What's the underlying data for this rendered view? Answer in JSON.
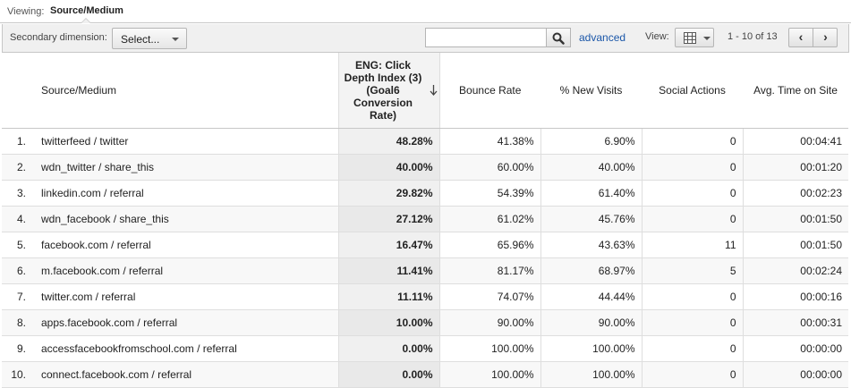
{
  "viewing": {
    "label": "Viewing:",
    "value": "Source/Medium"
  },
  "toolbar": {
    "secondary_label": "Secondary dimension:",
    "select_label": "Select...",
    "search_value": "",
    "advanced_label": "advanced",
    "view_label": "View:",
    "range_text": "1 - 10 of 13",
    "prev_symbol": "‹",
    "next_symbol": "›"
  },
  "table": {
    "headers": {
      "source": "Source/Medium",
      "eng": "ENG: Click Depth Index (3) (Goal6 Conversion Rate)",
      "bounce": "Bounce Rate",
      "new_visits": "% New Visits",
      "social": "Social Actions",
      "time": "Avg. Time on Site"
    },
    "rows": [
      {
        "idx": "1.",
        "source": "twitterfeed / twitter",
        "eng": "48.28%",
        "bounce": "41.38%",
        "new_visits": "6.90%",
        "social": "0",
        "time": "00:04:41"
      },
      {
        "idx": "2.",
        "source": "wdn_twitter / share_this",
        "eng": "40.00%",
        "bounce": "60.00%",
        "new_visits": "40.00%",
        "social": "0",
        "time": "00:01:20"
      },
      {
        "idx": "3.",
        "source": "linkedin.com / referral",
        "eng": "29.82%",
        "bounce": "54.39%",
        "new_visits": "61.40%",
        "social": "0",
        "time": "00:02:23"
      },
      {
        "idx": "4.",
        "source": "wdn_facebook / share_this",
        "eng": "27.12%",
        "bounce": "61.02%",
        "new_visits": "45.76%",
        "social": "0",
        "time": "00:01:50"
      },
      {
        "idx": "5.",
        "source": "facebook.com / referral",
        "eng": "16.47%",
        "bounce": "65.96%",
        "new_visits": "43.63%",
        "social": "11",
        "time": "00:01:50"
      },
      {
        "idx": "6.",
        "source": "m.facebook.com / referral",
        "eng": "11.41%",
        "bounce": "81.17%",
        "new_visits": "68.97%",
        "social": "5",
        "time": "00:02:24"
      },
      {
        "idx": "7.",
        "source": "twitter.com / referral",
        "eng": "11.11%",
        "bounce": "74.07%",
        "new_visits": "44.44%",
        "social": "0",
        "time": "00:00:16"
      },
      {
        "idx": "8.",
        "source": "apps.facebook.com / referral",
        "eng": "10.00%",
        "bounce": "90.00%",
        "new_visits": "90.00%",
        "social": "0",
        "time": "00:00:31"
      },
      {
        "idx": "9.",
        "source": "accessfacebookfromschool.com / referral",
        "eng": "0.00%",
        "bounce": "100.00%",
        "new_visits": "100.00%",
        "social": "0",
        "time": "00:00:00"
      },
      {
        "idx": "10.",
        "source": "connect.facebook.com / referral",
        "eng": "0.00%",
        "bounce": "100.00%",
        "new_visits": "100.00%",
        "social": "0",
        "time": "00:00:00"
      }
    ]
  },
  "colors": {
    "link": "#1a56a8",
    "border": "#c7c7c7",
    "toolbar_bg": "#f0f0f0",
    "sorted_col_bg": "#f0f0f0"
  }
}
